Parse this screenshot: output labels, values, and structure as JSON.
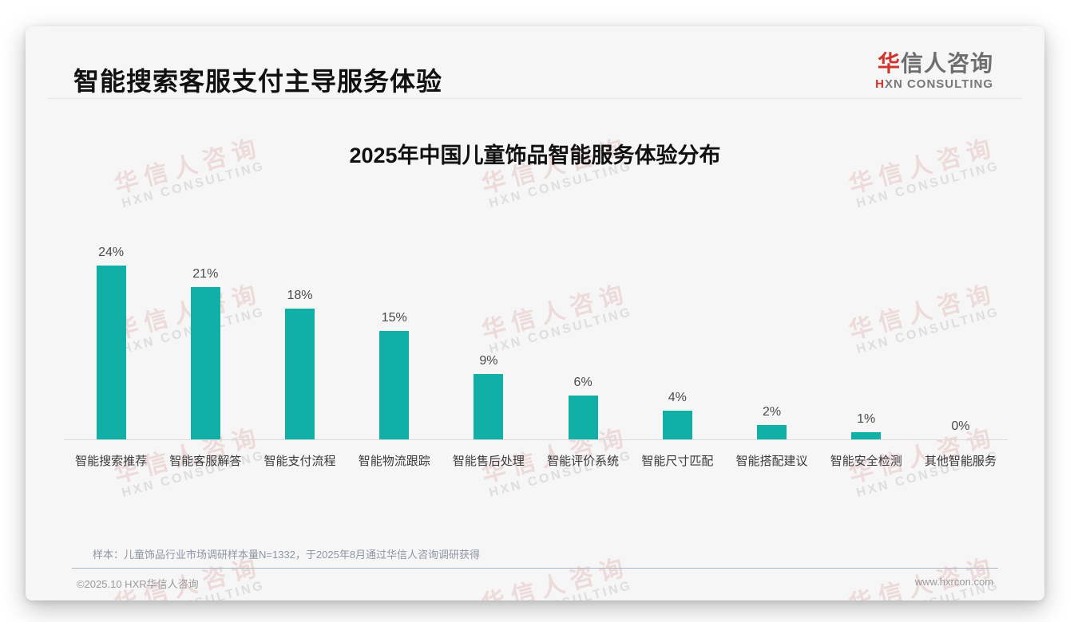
{
  "header": {
    "title": "智能搜索客服支付主导服务体验",
    "logo": {
      "zh_accent": "华",
      "zh_rest": "信人咨询",
      "en_accent": "H",
      "en_rest": "XN CONSULTING"
    }
  },
  "watermark": {
    "zh": "华信人咨询",
    "en": "HXN CONSULTING"
  },
  "chart_data": {
    "type": "bar",
    "title": "2025年中国儿童饰品智能服务体验分布",
    "categories": [
      "智能搜索推荐",
      "智能客服解答",
      "智能支付流程",
      "智能物流跟踪",
      "智能售后处理",
      "智能评价系统",
      "智能尺寸匹配",
      "智能搭配建议",
      "智能安全检测",
      "其他智能服务"
    ],
    "values": [
      24,
      21,
      18,
      15,
      9,
      6,
      4,
      2,
      1,
      0
    ],
    "value_labels": [
      "24%",
      "21%",
      "18%",
      "15%",
      "9%",
      "6%",
      "4%",
      "2%",
      "1%",
      "0%"
    ],
    "unit": "%",
    "bar_color": "#10b0a6",
    "ylim": [
      0,
      26
    ],
    "grid": false,
    "legend": "none",
    "xlabel": "",
    "ylabel": ""
  },
  "note": "样本：儿童饰品行业市场调研样本量N=1332，于2025年8月通过华信人咨询调研获得",
  "footer": {
    "left": "©2025.10 HXR华信人咨询",
    "right": "www.hxrcon.com"
  },
  "colors": {
    "accent_red": "#d0342c",
    "bar_teal": "#10b0a6"
  }
}
